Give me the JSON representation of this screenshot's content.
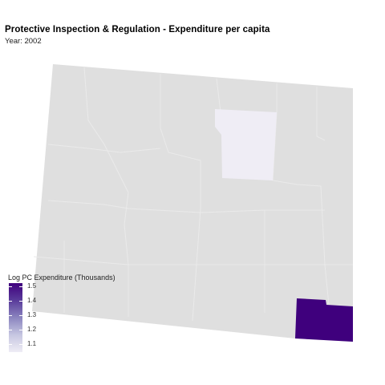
{
  "title": "Protective Inspection & Regulation - Expenditure per capita",
  "subtitle": "Year: 2002",
  "legend": {
    "title": "Log PC Expenditure (Thousands)",
    "ticks": [
      "1.5",
      "1.4",
      "1.3",
      "1.2",
      "1.1"
    ],
    "min": 1.05,
    "max": 1.53,
    "low_color": "#efedf5",
    "high_color": "#3f007d"
  },
  "map": {
    "base_color": "#dfdfdf",
    "border_color": "#efefef",
    "highlighted_regions": [
      {
        "name": "north-central-county",
        "value": 1.1
      },
      {
        "name": "southeast-county",
        "value": 1.53
      }
    ]
  }
}
